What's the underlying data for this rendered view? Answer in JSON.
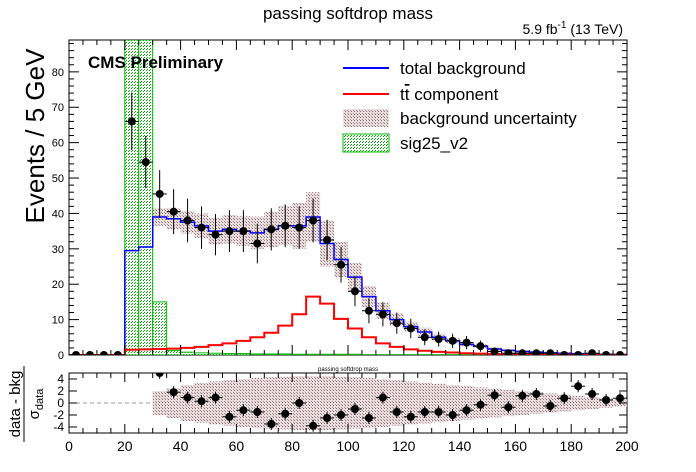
{
  "chart_data": [
    {
      "type": "bar",
      "title": "passing softdrop mass",
      "lumi_label_main": "5.9 fb",
      "lumi_label_sup": "-1",
      "lumi_label_energy": " (13 TeV)",
      "cms_label": "CMS Preliminary",
      "ylabel": "Events / 5 GeV",
      "xlim": [
        0,
        200
      ],
      "ylim": [
        0,
        89
      ],
      "yticks": [
        0,
        10,
        20,
        30,
        40,
        50,
        60,
        70,
        80
      ],
      "bin_width": 5,
      "bin_centers": [
        2.5,
        7.5,
        12.5,
        17.5,
        22.5,
        27.5,
        32.5,
        37.5,
        42.5,
        47.5,
        52.5,
        57.5,
        62.5,
        67.5,
        72.5,
        77.5,
        82.5,
        87.5,
        92.5,
        97.5,
        102.5,
        107.5,
        112.5,
        117.5,
        122.5,
        127.5,
        132.5,
        137.5,
        142.5,
        147.5,
        152.5,
        157.5,
        162.5,
        167.5,
        172.5,
        177.5,
        182.5,
        187.5,
        192.5,
        197.5
      ],
      "legend": {
        "placement": "top-right",
        "entries": [
          {
            "label": "total background",
            "kind": "line",
            "color": "#0000ff"
          },
          {
            "label_main": "t",
            "label_mid": "t",
            "label_rest": " component",
            "kind": "line",
            "color": "#ff0000"
          },
          {
            "label": "background uncertainty",
            "kind": "hatch",
            "color": "#a08080"
          },
          {
            "label": "sig25_v2",
            "kind": "signal",
            "color": "#00bb00"
          }
        ]
      },
      "series": [
        {
          "name": "total background",
          "color": "#0000ff",
          "values": [
            0,
            0,
            0,
            0,
            29.5,
            30.5,
            39,
            38.5,
            37.5,
            36.5,
            35,
            35.5,
            35,
            34.5,
            35.5,
            36.5,
            36.5,
            39,
            31.5,
            27,
            22,
            16.5,
            12.5,
            10,
            8,
            6.5,
            5,
            4,
            3,
            2.5,
            1.7,
            1.3,
            1,
            0.8,
            0.6,
            0.5,
            0.4,
            0.3,
            0.2,
            0.15
          ]
        },
        {
          "name": "tt component",
          "color": "#ff0000",
          "values": [
            0,
            0,
            0,
            0,
            1.5,
            1.6,
            1.7,
            1.8,
            2,
            2.3,
            2.8,
            3.3,
            4,
            5,
            6.3,
            8.3,
            11.5,
            16.5,
            14.5,
            10.2,
            7.5,
            5,
            3.3,
            2.3,
            1.6,
            1.2,
            0.9,
            0.7,
            0.5,
            0.4,
            0.3,
            0.25,
            0.2,
            0.15,
            0.12,
            0.1,
            0.08,
            0.06,
            0.05,
            0.04
          ]
        },
        {
          "name": "background uncertainty",
          "color": "#a08080",
          "half_width": [
            0,
            0,
            0,
            0,
            2,
            2,
            2.5,
            3,
            3.2,
            3.5,
            3.8,
            4,
            4.2,
            4.6,
            5,
            5.5,
            6.5,
            7,
            6.5,
            5,
            4,
            3,
            2.3,
            1.8,
            1.4,
            1.2,
            1,
            0.8,
            0.6,
            0.5,
            0.4,
            0.35,
            0.3,
            0.25,
            0.2,
            0.2,
            0.15,
            0.12,
            0.1,
            0.1
          ]
        },
        {
          "name": "sig25_v2",
          "color": "#00bb00",
          "values": [
            0,
            0,
            0,
            0,
            89,
            89,
            15,
            1.3,
            0.8,
            0.6,
            0.5,
            0.4,
            0.4,
            0.3,
            0.3,
            0.3,
            0.2,
            0.2,
            0.2,
            0.2,
            0.2,
            0.1,
            0.1,
            0.1,
            0.1,
            0.1,
            0.1,
            0.1,
            0.1,
            0.1,
            0.1,
            0.1,
            0.1,
            0.1,
            0.1,
            0.1,
            0.1,
            0.1,
            0.1,
            0.1
          ]
        },
        {
          "name": "data",
          "color": "#000000",
          "values": [
            0,
            0,
            0,
            0,
            66,
            54.5,
            45.5,
            40.5,
            38,
            36,
            34,
            35,
            35,
            31.5,
            35.5,
            36.5,
            36,
            38,
            32.5,
            25.5,
            18,
            12.5,
            11.5,
            9,
            7.5,
            5,
            4.5,
            4,
            3.5,
            2.5,
            1,
            0.5,
            0.5,
            0.5,
            0.5,
            0,
            0,
            0.5,
            0,
            0
          ]
        }
      ]
    },
    {
      "type": "scatter",
      "title": "passing softdrop mass",
      "ylabel_main": "data - bkg",
      "ylabel_sigma": "σ",
      "ylabel_sub": "data",
      "xlim": [
        0,
        200
      ],
      "ylim": [
        -5,
        5
      ],
      "xticks": [
        0,
        20,
        40,
        60,
        80,
        100,
        120,
        140,
        160,
        180,
        200
      ],
      "yticks": [
        -4,
        -2,
        0,
        2,
        4
      ],
      "x": [
        32.5,
        37.5,
        42.5,
        47.5,
        52.5,
        57.5,
        62.5,
        67.5,
        72.5,
        77.5,
        82.5,
        87.5,
        92.5,
        97.5,
        102.5,
        107.5,
        112.5,
        117.5,
        122.5,
        127.5,
        132.5,
        137.5,
        142.5,
        147.5,
        152.5,
        157.5,
        162.5,
        167.5,
        172.5,
        177.5,
        182.5,
        187.5,
        192.5,
        197.5
      ],
      "y": [
        5,
        1.8,
        0.9,
        0.3,
        0.9,
        -2.3,
        -1.2,
        -1.5,
        -3.5,
        -1.8,
        0,
        -3.8,
        -2.5,
        -2,
        -1,
        -2.5,
        0.9,
        -1.5,
        -2.3,
        -1.5,
        -1.5,
        -2,
        -1.2,
        -0.3,
        1.3,
        -0.7,
        1.2,
        1.5,
        -0.5,
        0.8,
        2.8,
        1.5,
        0.5,
        0.8
      ],
      "band_half_width": [
        2,
        2.5,
        3,
        3.3,
        3.6,
        3.8,
        4,
        4.2,
        4.3,
        4.4,
        4.5,
        4.5,
        4.5,
        4.4,
        4.3,
        4.2,
        4,
        3.8,
        3.6,
        3.4,
        3.2,
        3,
        2.8,
        2.6,
        2.4,
        2.2,
        2,
        1.8,
        1.6,
        1.4,
        1.2,
        1,
        0.8,
        0.6
      ]
    }
  ]
}
